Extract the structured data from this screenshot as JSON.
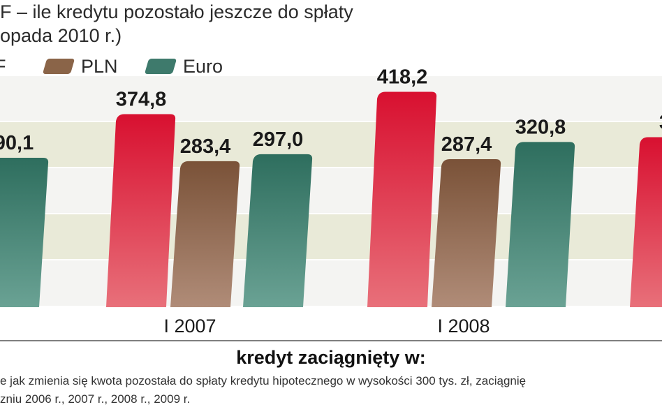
{
  "title_lines": [
    "F – ile kredytu pozostało jeszcze do spłaty",
    "opada 2010 r.)"
  ],
  "legend": [
    {
      "label": "F",
      "color": "#d83040"
    },
    {
      "label": "PLN",
      "color": "#8a6448"
    },
    {
      "label": "Euro",
      "color": "#3e7a6c"
    }
  ],
  "footnote_lines": [
    "e jak zmienia się kwota pozostała do spłaty  kredytu hipotecznego w wysokości 300 tys. zł, zaciągnię",
    "zniu 2006 r., 2007 r., 2008 r., 2009 r."
  ],
  "chart_data": {
    "type": "bar",
    "categories": [
      "I 2007",
      "I 2008"
    ],
    "series": [
      {
        "name": "F",
        "color": "#d83040"
      },
      {
        "name": "PLN",
        "color": "#8a6448"
      },
      {
        "name": "Euro",
        "color": "#3e7a6c"
      }
    ],
    "bars": [
      {
        "series": "Euro",
        "category": "",
        "value": 290.1,
        "label": "90,1"
      },
      {
        "series": "F",
        "category": "I 2007",
        "value": 374.8,
        "label": "374,8"
      },
      {
        "series": "PLN",
        "category": "I 2007",
        "value": 283.4,
        "label": "283,4"
      },
      {
        "series": "Euro",
        "category": "I 2007",
        "value": 297.0,
        "label": "297,0"
      },
      {
        "series": "F",
        "category": "I 2008",
        "value": 418.2,
        "label": "418,2"
      },
      {
        "series": "PLN",
        "category": "I 2008",
        "value": 287.4,
        "label": "287,4"
      },
      {
        "series": "Euro",
        "category": "I 2008",
        "value": 320.8,
        "label": "320,8"
      },
      {
        "series": "F",
        "category": "",
        "value": 330,
        "label": "3"
      }
    ],
    "xlabel": "kredyt zaciągnięty w:",
    "ylim": [
      0,
      450
    ],
    "grid": true
  }
}
